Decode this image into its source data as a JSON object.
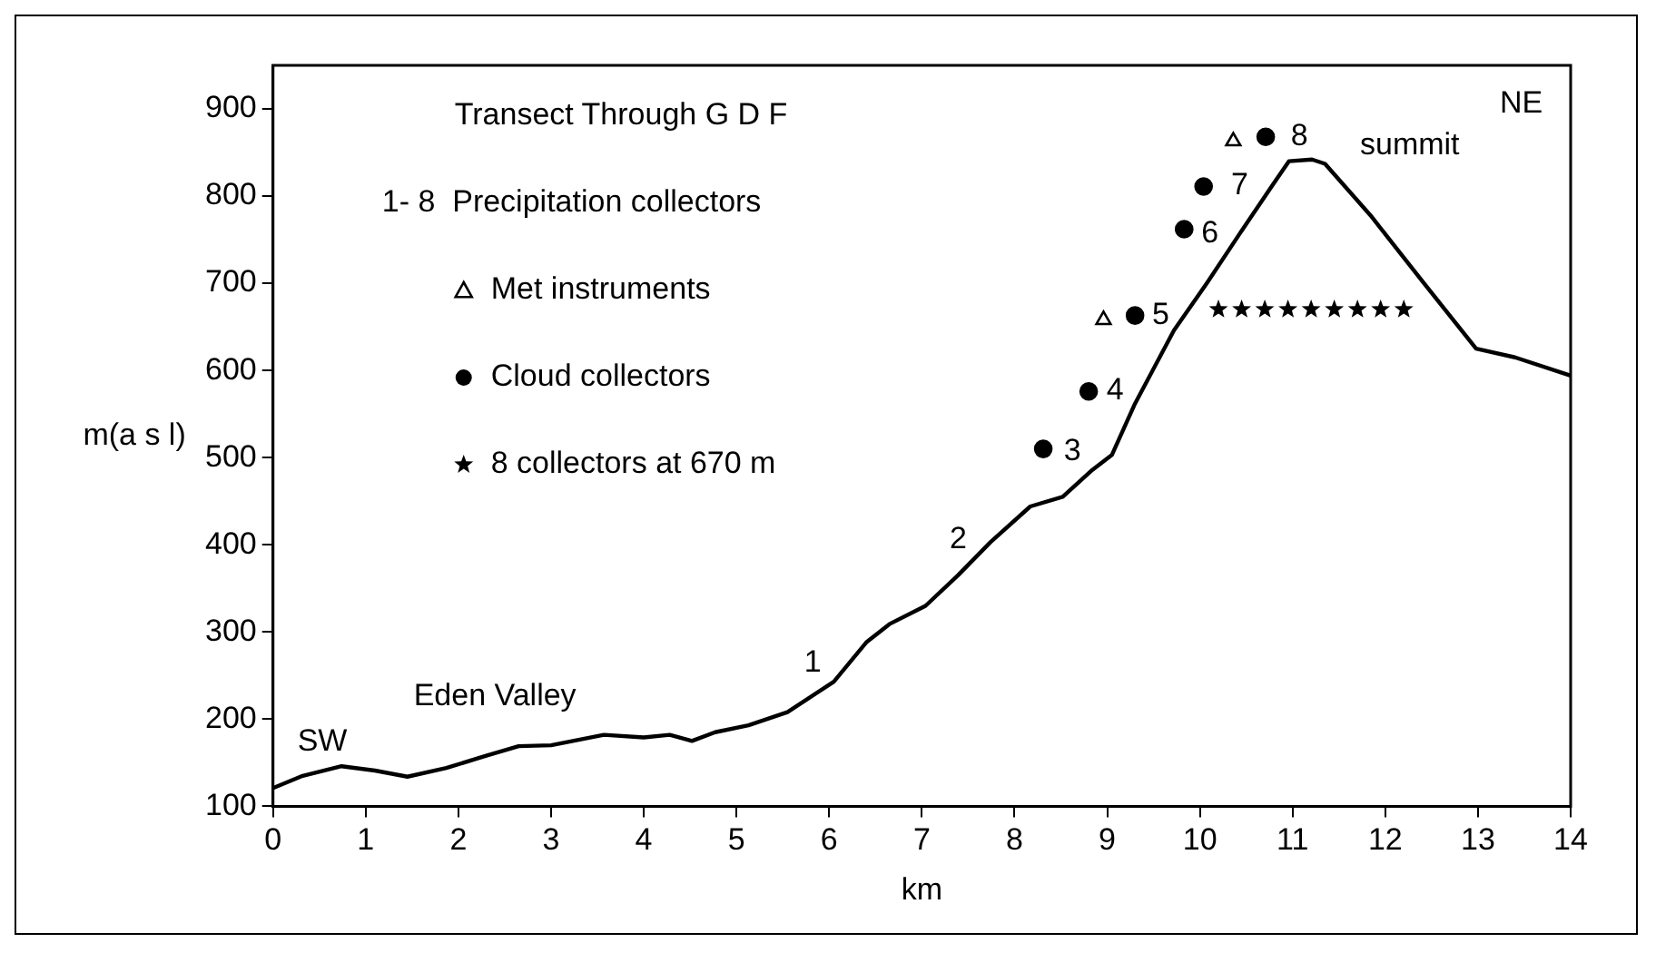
{
  "chart_data": {
    "type": "line",
    "title": "Transect Through G D F",
    "xlabel": "km",
    "ylabel": "m(a s l)",
    "xlim": [
      0,
      14
    ],
    "ylim": [
      100,
      950
    ],
    "xticks": [
      0,
      1,
      2,
      3,
      4,
      5,
      6,
      7,
      8,
      9,
      10,
      11,
      12,
      13,
      14
    ],
    "yticks": [
      100,
      200,
      300,
      400,
      500,
      600,
      700,
      800,
      900
    ],
    "grid": false,
    "legend": "top left",
    "line_style": "solid",
    "series": [
      {
        "marker": "none",
        "color": "#000000",
        "x": [
          0,
          0.32,
          0.74,
          1.1,
          1.45,
          1.87,
          2.3,
          2.65,
          3.0,
          3.57,
          4.0,
          4.28,
          4.52,
          4.77,
          5.13,
          5.55,
          6.05,
          6.4,
          6.65,
          7.04,
          7.39,
          7.74,
          8.17,
          8.52,
          8.84,
          9.05,
          9.3,
          9.72,
          10.08,
          10.43,
          10.78,
          10.96,
          11.21,
          11.35,
          11.84,
          12.41,
          12.98,
          13.4,
          14.0
        ],
        "values": [
          121,
          135,
          146,
          141,
          134,
          144,
          158,
          169,
          170,
          182,
          179,
          182,
          175,
          185,
          193,
          208,
          243,
          288,
          309,
          330,
          365,
          403,
          444,
          455,
          486,
          503,
          562,
          646,
          701,
          757,
          812,
          840,
          842,
          837,
          778,
          701,
          625,
          615,
          594
        ]
      },
      {
        "type": "scatter",
        "name": "Met instruments",
        "marker": "triangle",
        "color": "#000000",
        "x": [
          8.96,
          10.36
        ],
        "values": [
          658,
          863
        ]
      },
      {
        "type": "scatter",
        "name": "Cloud collectors",
        "marker": "circle",
        "color": "#000000",
        "x": [
          8.31,
          8.8,
          9.3,
          9.83,
          10.04,
          10.71
        ],
        "values": [
          510,
          576,
          663,
          762,
          811,
          868
        ]
      },
      {
        "type": "scatter",
        "name": "8 collectors at 670 m",
        "marker": "star",
        "color": "#000000",
        "x": [
          10.2,
          10.45,
          10.7,
          10.95,
          11.2,
          11.45,
          11.7,
          11.95,
          12.2
        ],
        "values": [
          670,
          670,
          670,
          670,
          670,
          670,
          670,
          670,
          670
        ]
      }
    ],
    "annotations": [
      "1- 8  Precipitation collectors",
      "1",
      "2",
      "3",
      "4",
      "5",
      "6",
      "7",
      "8",
      "SW",
      "Eden Valley",
      "summit",
      "NE"
    ]
  }
}
